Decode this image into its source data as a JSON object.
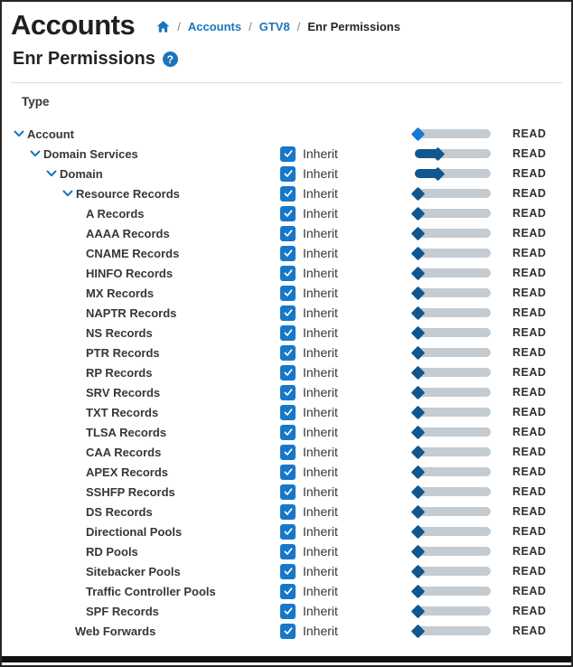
{
  "window": {
    "title": "Accounts"
  },
  "breadcrumb": {
    "separator": "/",
    "links": [
      "Accounts",
      "GTV8"
    ],
    "current": "Enr Permissions"
  },
  "heading": {
    "title": "Enr Permissions",
    "help_glyph": "?"
  },
  "table": {
    "column_header": "Type"
  },
  "labels": {
    "inherit": "Inherit"
  },
  "colors": {
    "accent_blue": "#1b75bc",
    "checkbox_blue": "#1777c8",
    "slider_handle_dark": "#11578f",
    "slider_handle_highlight": "#1a78d2",
    "slider_track_gray": "#c4cbd1",
    "text_dark": "#212529",
    "text_row": "#32383d",
    "separator_gray": "#73808c",
    "bottom_bar_black": "#101010"
  },
  "rows": [
    {
      "label": "Account",
      "level": 0,
      "has_children": true,
      "inherit": null,
      "slider_step": 0,
      "slider_variant": "highlight",
      "permission": "READ"
    },
    {
      "label": "Domain Services",
      "level": 1,
      "has_children": true,
      "inherit": true,
      "slider_step": 1,
      "slider_variant": "default",
      "permission": "READ"
    },
    {
      "label": "Domain",
      "level": 2,
      "has_children": true,
      "inherit": true,
      "slider_step": 1,
      "slider_variant": "default",
      "permission": "READ"
    },
    {
      "label": "Resource Records",
      "level": 3,
      "has_children": true,
      "inherit": true,
      "slider_step": 0,
      "slider_variant": "default",
      "permission": "READ"
    },
    {
      "label": "A Records",
      "level": 4,
      "has_children": false,
      "inherit": true,
      "slider_step": 0,
      "slider_variant": "default",
      "permission": "READ"
    },
    {
      "label": "AAAA Records",
      "level": 4,
      "has_children": false,
      "inherit": true,
      "slider_step": 0,
      "slider_variant": "default",
      "permission": "READ"
    },
    {
      "label": "CNAME Records",
      "level": 4,
      "has_children": false,
      "inherit": true,
      "slider_step": 0,
      "slider_variant": "default",
      "permission": "READ"
    },
    {
      "label": "HINFO Records",
      "level": 4,
      "has_children": false,
      "inherit": true,
      "slider_step": 0,
      "slider_variant": "default",
      "permission": "READ"
    },
    {
      "label": "MX Records",
      "level": 4,
      "has_children": false,
      "inherit": true,
      "slider_step": 0,
      "slider_variant": "default",
      "permission": "READ"
    },
    {
      "label": "NAPTR Records",
      "level": 4,
      "has_children": false,
      "inherit": true,
      "slider_step": 0,
      "slider_variant": "default",
      "permission": "READ"
    },
    {
      "label": "NS Records",
      "level": 4,
      "has_children": false,
      "inherit": true,
      "slider_step": 0,
      "slider_variant": "default",
      "permission": "READ"
    },
    {
      "label": "PTR Records",
      "level": 4,
      "has_children": false,
      "inherit": true,
      "slider_step": 0,
      "slider_variant": "default",
      "permission": "READ"
    },
    {
      "label": "RP Records",
      "level": 4,
      "has_children": false,
      "inherit": true,
      "slider_step": 0,
      "slider_variant": "default",
      "permission": "READ"
    },
    {
      "label": "SRV Records",
      "level": 4,
      "has_children": false,
      "inherit": true,
      "slider_step": 0,
      "slider_variant": "default",
      "permission": "READ"
    },
    {
      "label": "TXT Records",
      "level": 4,
      "has_children": false,
      "inherit": true,
      "slider_step": 0,
      "slider_variant": "default",
      "permission": "READ"
    },
    {
      "label": "TLSA Records",
      "level": 4,
      "has_children": false,
      "inherit": true,
      "slider_step": 0,
      "slider_variant": "default",
      "permission": "READ"
    },
    {
      "label": "CAA Records",
      "level": 4,
      "has_children": false,
      "inherit": true,
      "slider_step": 0,
      "slider_variant": "default",
      "permission": "READ"
    },
    {
      "label": "APEX Records",
      "level": 4,
      "has_children": false,
      "inherit": true,
      "slider_step": 0,
      "slider_variant": "default",
      "permission": "READ"
    },
    {
      "label": "SSHFP Records",
      "level": 4,
      "has_children": false,
      "inherit": true,
      "slider_step": 0,
      "slider_variant": "default",
      "permission": "READ"
    },
    {
      "label": "DS Records",
      "level": 4,
      "has_children": false,
      "inherit": true,
      "slider_step": 0,
      "slider_variant": "default",
      "permission": "READ"
    },
    {
      "label": "Directional Pools",
      "level": 4,
      "has_children": false,
      "inherit": true,
      "slider_step": 0,
      "slider_variant": "default",
      "permission": "READ"
    },
    {
      "label": "RD Pools",
      "level": 4,
      "has_children": false,
      "inherit": true,
      "slider_step": 0,
      "slider_variant": "default",
      "permission": "READ"
    },
    {
      "label": "Sitebacker Pools",
      "level": 4,
      "has_children": false,
      "inherit": true,
      "slider_step": 0,
      "slider_variant": "default",
      "permission": "READ"
    },
    {
      "label": "Traffic Controller Pools",
      "level": 4,
      "has_children": false,
      "inherit": true,
      "slider_step": 0,
      "slider_variant": "default",
      "permission": "READ"
    },
    {
      "label": "SPF Records",
      "level": 4,
      "has_children": false,
      "inherit": true,
      "slider_step": 0,
      "slider_variant": "default",
      "permission": "READ"
    },
    {
      "label": "Web Forwards",
      "level": 3,
      "has_children": false,
      "inherit": true,
      "slider_step": 0,
      "slider_variant": "default",
      "permission": "READ"
    }
  ]
}
